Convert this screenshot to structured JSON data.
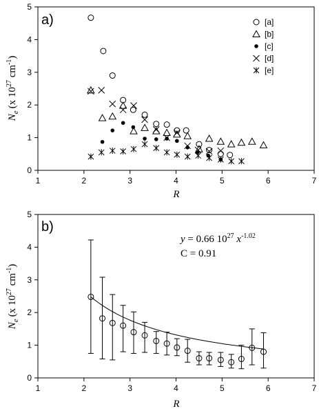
{
  "chart_data": [
    {
      "type": "scatter",
      "panel_label": "a)",
      "xlabel": "R",
      "ylabel_main": "N",
      "ylabel_sub": "e",
      "ylabel_unit": "(x 10",
      "ylabel_exp1": "27",
      "ylabel_mid": " cm",
      "ylabel_exp2": "-1",
      "ylabel_close": ")",
      "xlim": [
        1,
        7
      ],
      "ylim": [
        0,
        5
      ],
      "xticks": [
        "1",
        "2",
        "3",
        "4",
        "5",
        "6",
        "7"
      ],
      "yticks": [
        "0",
        "1",
        "2",
        "3",
        "4",
        "5"
      ],
      "grid": false,
      "legend_position": "top-right",
      "series": [
        {
          "name": "[a]",
          "marker": "circle-open",
          "x": [
            2.15,
            2.42,
            2.62,
            2.85,
            3.07,
            3.32,
            3.57,
            3.8,
            4.02,
            4.22,
            4.5,
            4.72,
            4.97,
            5.17
          ],
          "y": [
            4.67,
            3.65,
            2.9,
            2.15,
            1.85,
            1.7,
            1.42,
            1.4,
            1.22,
            1.22,
            0.8,
            0.62,
            0.5,
            0.47
          ]
        },
        {
          "name": "[b]",
          "marker": "triangle-open",
          "x": [
            2.15,
            2.4,
            2.62,
            2.85,
            3.08,
            3.32,
            3.57,
            3.8,
            4.02,
            4.25,
            4.5,
            4.72,
            4.97,
            5.2,
            5.42,
            5.65,
            5.9
          ],
          "y": [
            2.45,
            1.6,
            1.65,
            1.98,
            1.2,
            1.3,
            1.2,
            1.15,
            1.1,
            1.05,
            0.65,
            0.97,
            0.88,
            0.8,
            0.85,
            0.88,
            0.77
          ]
        },
        {
          "name": "[c]",
          "marker": "dot",
          "x": [
            2.4,
            2.62,
            2.85,
            3.07,
            3.32,
            3.57,
            3.8,
            4.02,
            4.25,
            4.47,
            4.7,
            4.97
          ],
          "y": [
            0.87,
            1.22,
            1.45,
            1.32,
            0.97,
            0.95,
            0.97,
            0.9,
            0.7,
            0.55,
            0.45,
            0.33
          ]
        },
        {
          "name": "[d]",
          "marker": "cross",
          "x": [
            2.15,
            2.38,
            2.62,
            2.85,
            3.08,
            3.32,
            3.57,
            3.8,
            4.02,
            4.25,
            4.48,
            4.72,
            4.97
          ],
          "y": [
            2.42,
            2.45,
            2.03,
            1.85,
            1.98,
            1.55,
            1.25,
            1.0,
            1.15,
            0.75,
            0.62,
            0.58,
            0.6
          ]
        },
        {
          "name": "[e]",
          "marker": "asterisk",
          "x": [
            2.15,
            2.38,
            2.62,
            2.85,
            3.08,
            3.32,
            3.57,
            3.8,
            4.02,
            4.25,
            4.48,
            4.72,
            4.97,
            5.2,
            5.42
          ],
          "y": [
            0.42,
            0.55,
            0.6,
            0.58,
            0.65,
            0.8,
            0.68,
            0.55,
            0.48,
            0.42,
            0.45,
            0.38,
            0.33,
            0.28,
            0.28
          ]
        }
      ]
    },
    {
      "type": "scatter",
      "panel_label": "b)",
      "xlabel": "R",
      "ylabel_main": "N",
      "ylabel_sub": "e",
      "ylabel_unit": "(x 10",
      "ylabel_exp1": "27",
      "ylabel_mid": " cm",
      "ylabel_exp2": "-1",
      "ylabel_close": ")",
      "xlim": [
        1,
        7
      ],
      "ylim": [
        0,
        5
      ],
      "xticks": [
        "1",
        "2",
        "3",
        "4",
        "5",
        "6",
        "7"
      ],
      "yticks": [
        "0",
        "1",
        "2",
        "3",
        "4",
        "5"
      ],
      "grid": false,
      "series": [
        {
          "marker": "circle-open",
          "x": [
            2.15,
            2.4,
            2.62,
            2.85,
            3.08,
            3.32,
            3.57,
            3.8,
            4.02,
            4.25,
            4.5,
            4.72,
            4.97,
            5.2,
            5.42,
            5.65,
            5.9
          ],
          "y": [
            2.48,
            1.82,
            1.68,
            1.6,
            1.4,
            1.3,
            1.13,
            1.05,
            0.93,
            0.83,
            0.6,
            0.6,
            0.55,
            0.48,
            0.58,
            0.92,
            0.8
          ],
          "yerr_low": [
            0.75,
            0.58,
            0.55,
            0.8,
            0.75,
            0.78,
            0.75,
            0.7,
            0.68,
            0.48,
            0.4,
            0.4,
            0.35,
            0.3,
            0.28,
            0.4,
            0.3
          ],
          "yerr_high": [
            4.22,
            3.08,
            2.55,
            2.22,
            2.02,
            1.7,
            1.42,
            1.4,
            1.2,
            1.18,
            0.8,
            0.78,
            0.78,
            0.72,
            1.0,
            1.5,
            1.38
          ]
        }
      ],
      "fit": {
        "type": "power",
        "a": 0.66,
        "b": -1.02,
        "x_range": [
          2.15,
          5.9
        ]
      },
      "annotation_eq": {
        "var_y": "y",
        "eq": " = 0.66 10",
        "exp1": "27",
        "var_x": " x",
        "exp2": "-1.02"
      },
      "annotation_c": "C = 0.91"
    }
  ]
}
